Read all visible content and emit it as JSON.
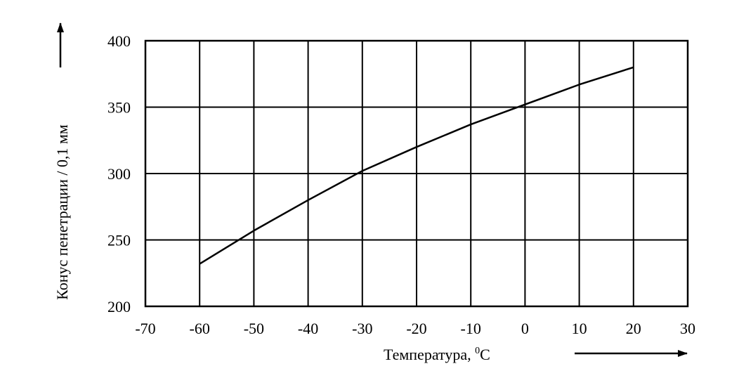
{
  "chart_data": {
    "type": "line",
    "title": "",
    "xlabel": "Температура, ",
    "xlabel_unit": "C",
    "xlabel_superscript": "0",
    "ylabel": "Конус пенетрации / 0,1 мм",
    "xlim": [
      -70,
      30
    ],
    "ylim": [
      200,
      400
    ],
    "x_ticks": [
      -70,
      -60,
      -50,
      -40,
      -30,
      -20,
      -10,
      0,
      10,
      20,
      30
    ],
    "y_ticks": [
      200,
      250,
      300,
      350,
      400
    ],
    "x_tick_labels": [
      "-70",
      "-60",
      "-50",
      "-40",
      "-30",
      "-20",
      "-10",
      "0",
      "10",
      "20",
      "30"
    ],
    "y_tick_labels": [
      "200",
      "250",
      "300",
      "350",
      "400"
    ],
    "grid": true,
    "legend": "none",
    "line_color": "#000000",
    "series": [
      {
        "x": [
          -60,
          -50,
          -40,
          -30,
          -20,
          -10,
          0,
          10,
          20
        ],
        "y": [
          232,
          257,
          280,
          302,
          320,
          337,
          352,
          367,
          380
        ]
      }
    ]
  }
}
